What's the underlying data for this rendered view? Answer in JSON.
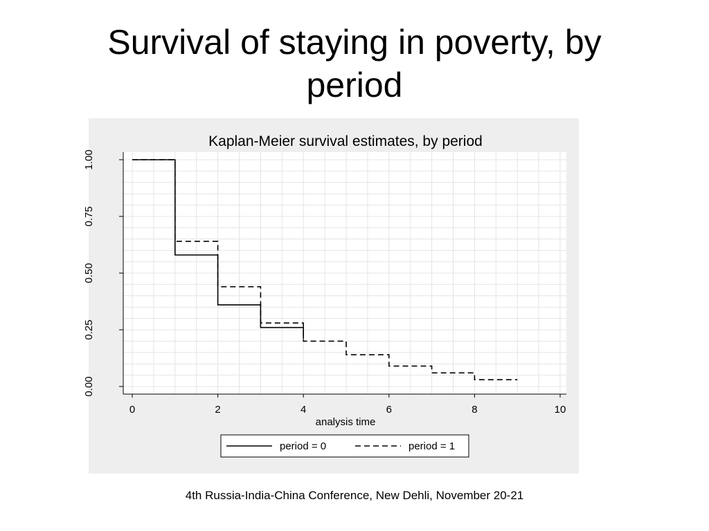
{
  "slide": {
    "title_line1": "Survival of staying in poverty, by",
    "title_line2": "period",
    "footer": "4th Russia-India-China Conference, New Dehli, November 20-21"
  },
  "colors": {
    "panel_background": "#eeeeee",
    "plot_background": "#ffffff",
    "grid": "#e4e4e4",
    "line": "#000000"
  },
  "chart_data": {
    "type": "line",
    "step": true,
    "title": "Kaplan-Meier survival estimates, by period",
    "xlabel": "analysis time",
    "ylabel": "",
    "xlim": [
      0,
      10
    ],
    "ylim": [
      0,
      1
    ],
    "x_ticks": [
      0,
      2,
      4,
      6,
      8,
      10
    ],
    "y_ticks": [
      0,
      0.25,
      0.5,
      0.75,
      1
    ],
    "y_tick_labels": [
      "0.00",
      "0.25",
      "0.50",
      "0.75",
      "1.00"
    ],
    "grid": true,
    "legend_position": "bottom",
    "series": [
      {
        "name": "period = 0",
        "line_style": "solid",
        "x": [
          0,
          1,
          2,
          3,
          4
        ],
        "y": [
          1.0,
          0.58,
          0.36,
          0.26,
          0.21
        ]
      },
      {
        "name": "period = 1",
        "line_style": "dashed",
        "x": [
          0,
          1,
          2,
          3,
          4,
          5,
          6,
          7,
          8,
          9
        ],
        "y": [
          1.0,
          0.64,
          0.44,
          0.28,
          0.2,
          0.14,
          0.09,
          0.06,
          0.03,
          0.03
        ]
      }
    ]
  }
}
